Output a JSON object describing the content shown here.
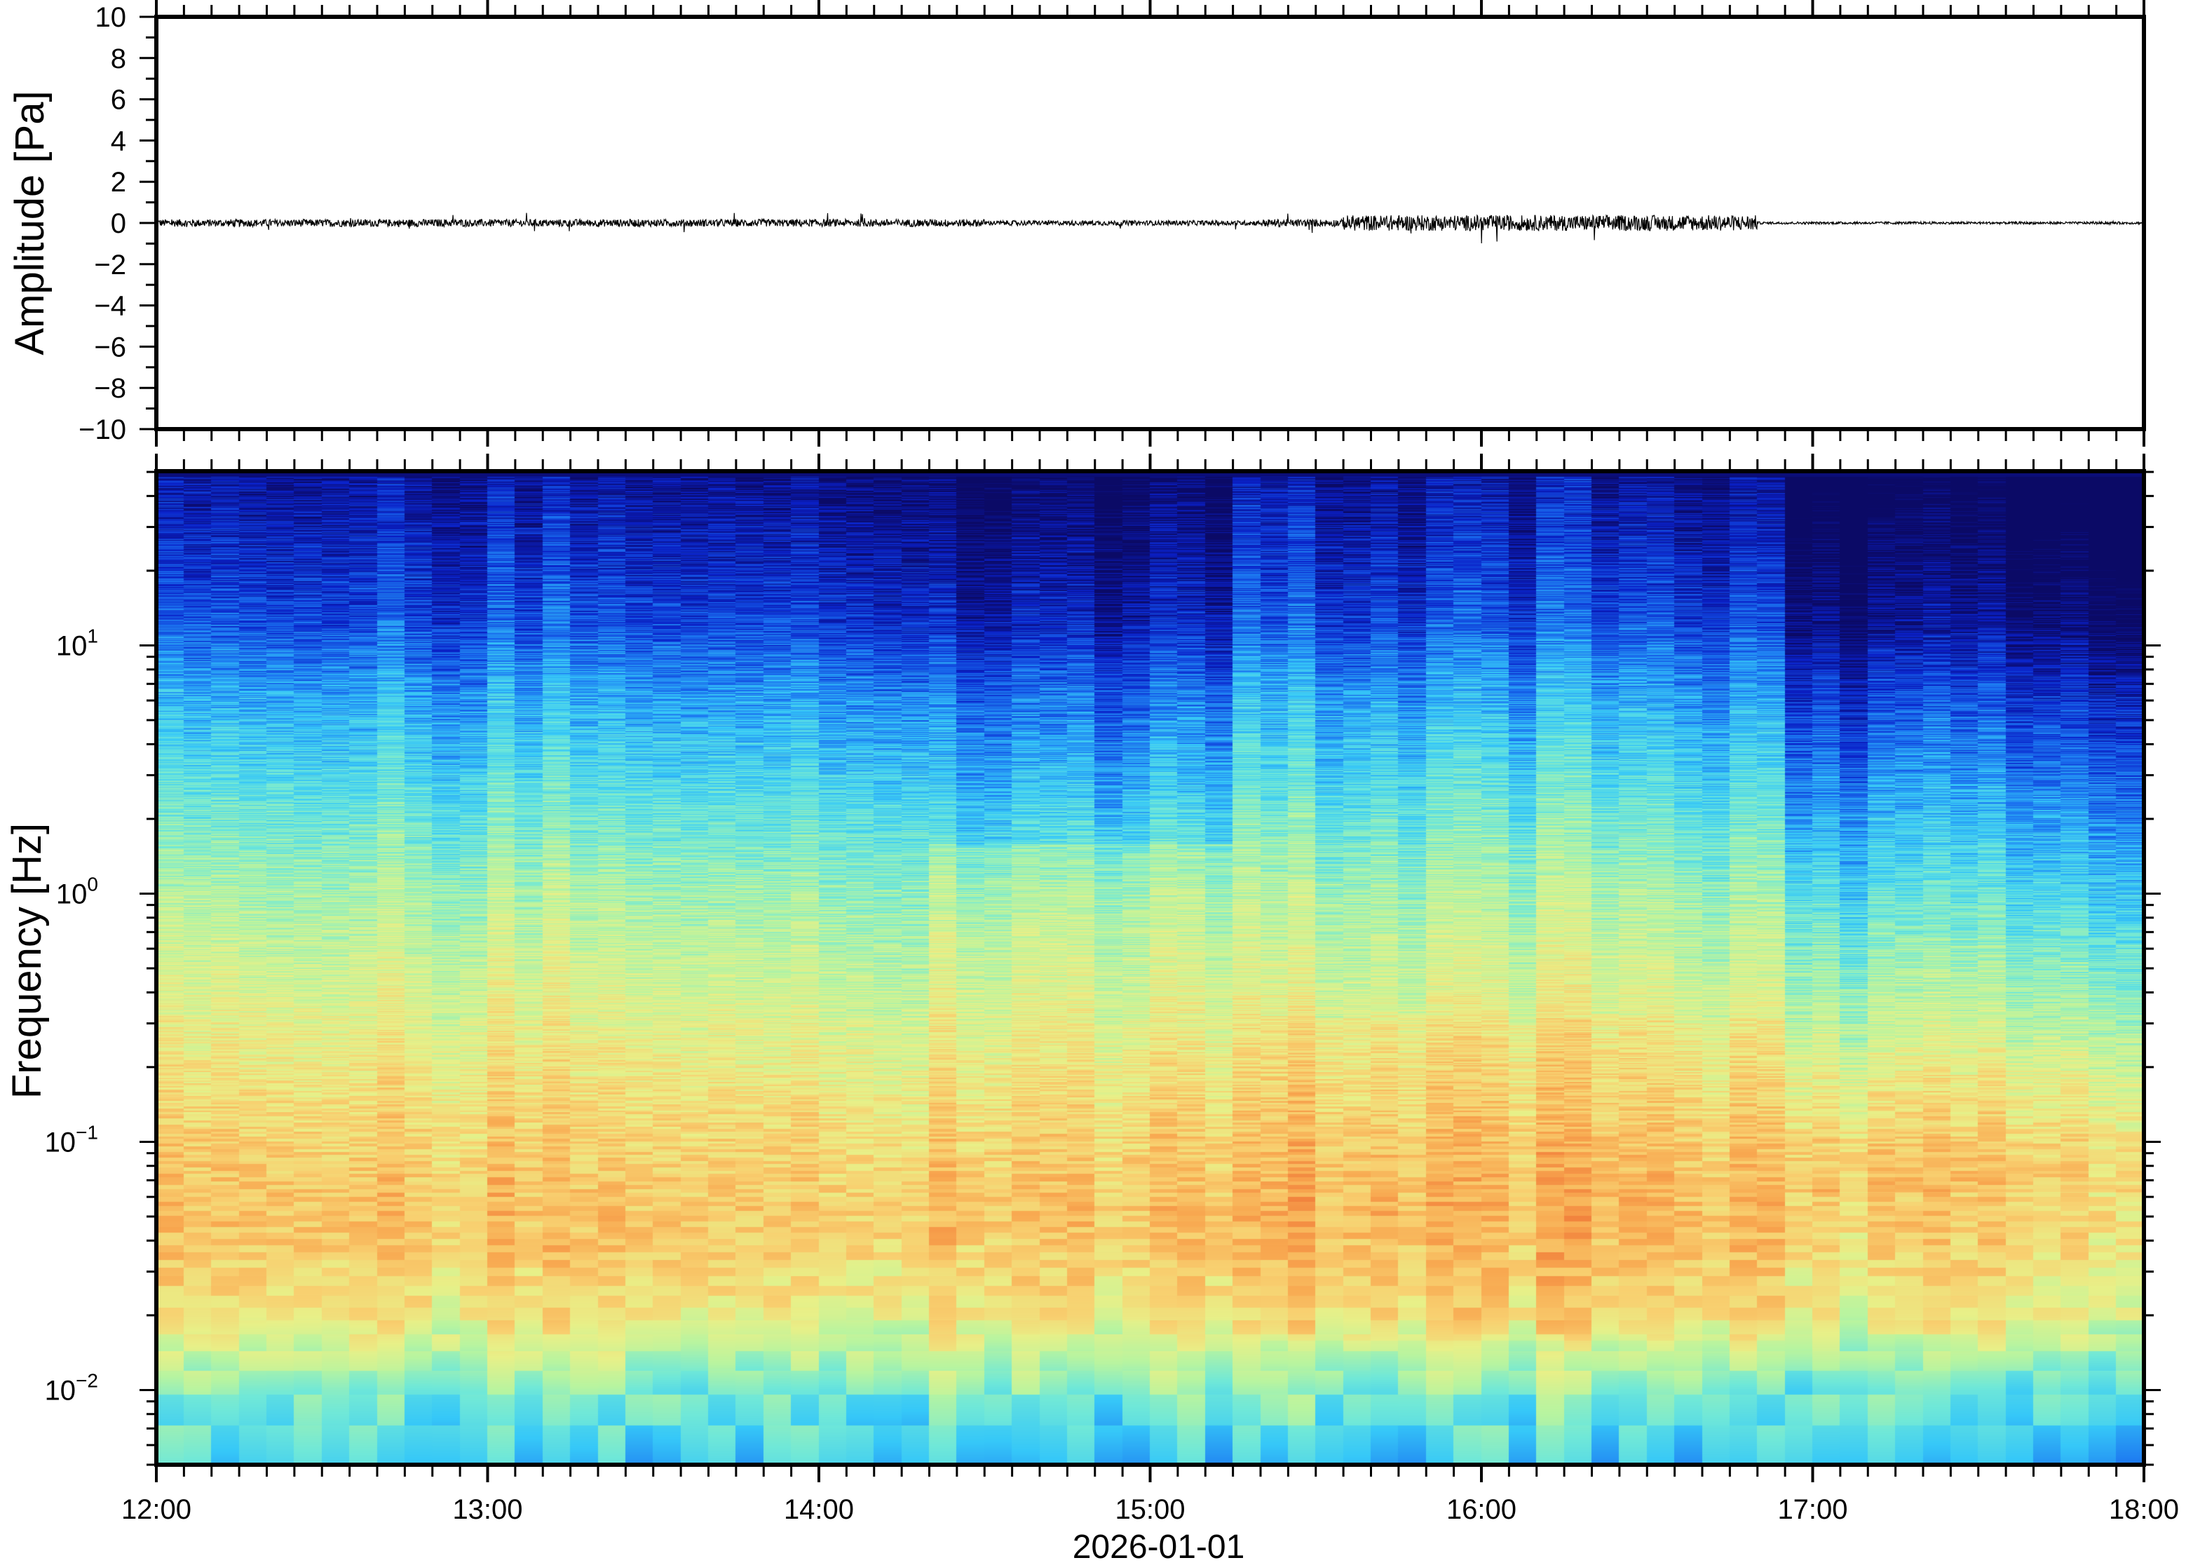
{
  "chart_data": [
    {
      "type": "line",
      "panel": "waveform",
      "ylabel": "Amplitude [Pa]",
      "ylim": [
        -10,
        10
      ],
      "yticks": [
        "10",
        "8",
        "6",
        "4",
        "2",
        "0",
        "−2",
        "−4",
        "−6",
        "−8",
        "−10"
      ],
      "ytick_values": [
        10,
        8,
        6,
        4,
        2,
        0,
        -2,
        -4,
        -6,
        -8,
        -10
      ],
      "xlim": [
        "12:00",
        "18:00"
      ],
      "series_color": "#000000",
      "description_values": {
        "typical_amplitude": 0.3,
        "max_amplitude": 1.1,
        "quiet_after": "16:50",
        "louder_interval": [
          "15:35",
          "16:50"
        ]
      }
    },
    {
      "type": "heatmap",
      "panel": "spectrogram",
      "ylabel": "Frequency [Hz]",
      "yscale": "log",
      "ylim": [
        0.005,
        50
      ],
      "yticks": [
        {
          "base": "10",
          "exp": "−2",
          "value": 0.01
        },
        {
          "base": "10",
          "exp": "−1",
          "value": 0.1
        },
        {
          "base": "10",
          "exp": "0",
          "value": 1
        },
        {
          "base": "10",
          "exp": "1",
          "value": 10
        }
      ],
      "xlim": [
        "12:00",
        "18:00"
      ],
      "xticks": [
        "12:00",
        "13:00",
        "14:00",
        "15:00",
        "16:00",
        "17:00",
        "18:00"
      ],
      "xlabel": "2026-01-01",
      "colormap": [
        "#0b0a66",
        "#0a20c8",
        "#1a70f0",
        "#36c8f8",
        "#70e8d8",
        "#b8f4a0",
        "#e8f088",
        "#f8d070",
        "#f8a850",
        "#f07838"
      ],
      "peak_power_band_hz": [
        0.03,
        0.3
      ],
      "low_power_high_freq_after": "16:52"
    }
  ],
  "xaxis": {
    "ticks": [
      "12:00",
      "13:00",
      "14:00",
      "15:00",
      "16:00",
      "17:00",
      "18:00"
    ],
    "label": "2026-01-01"
  }
}
